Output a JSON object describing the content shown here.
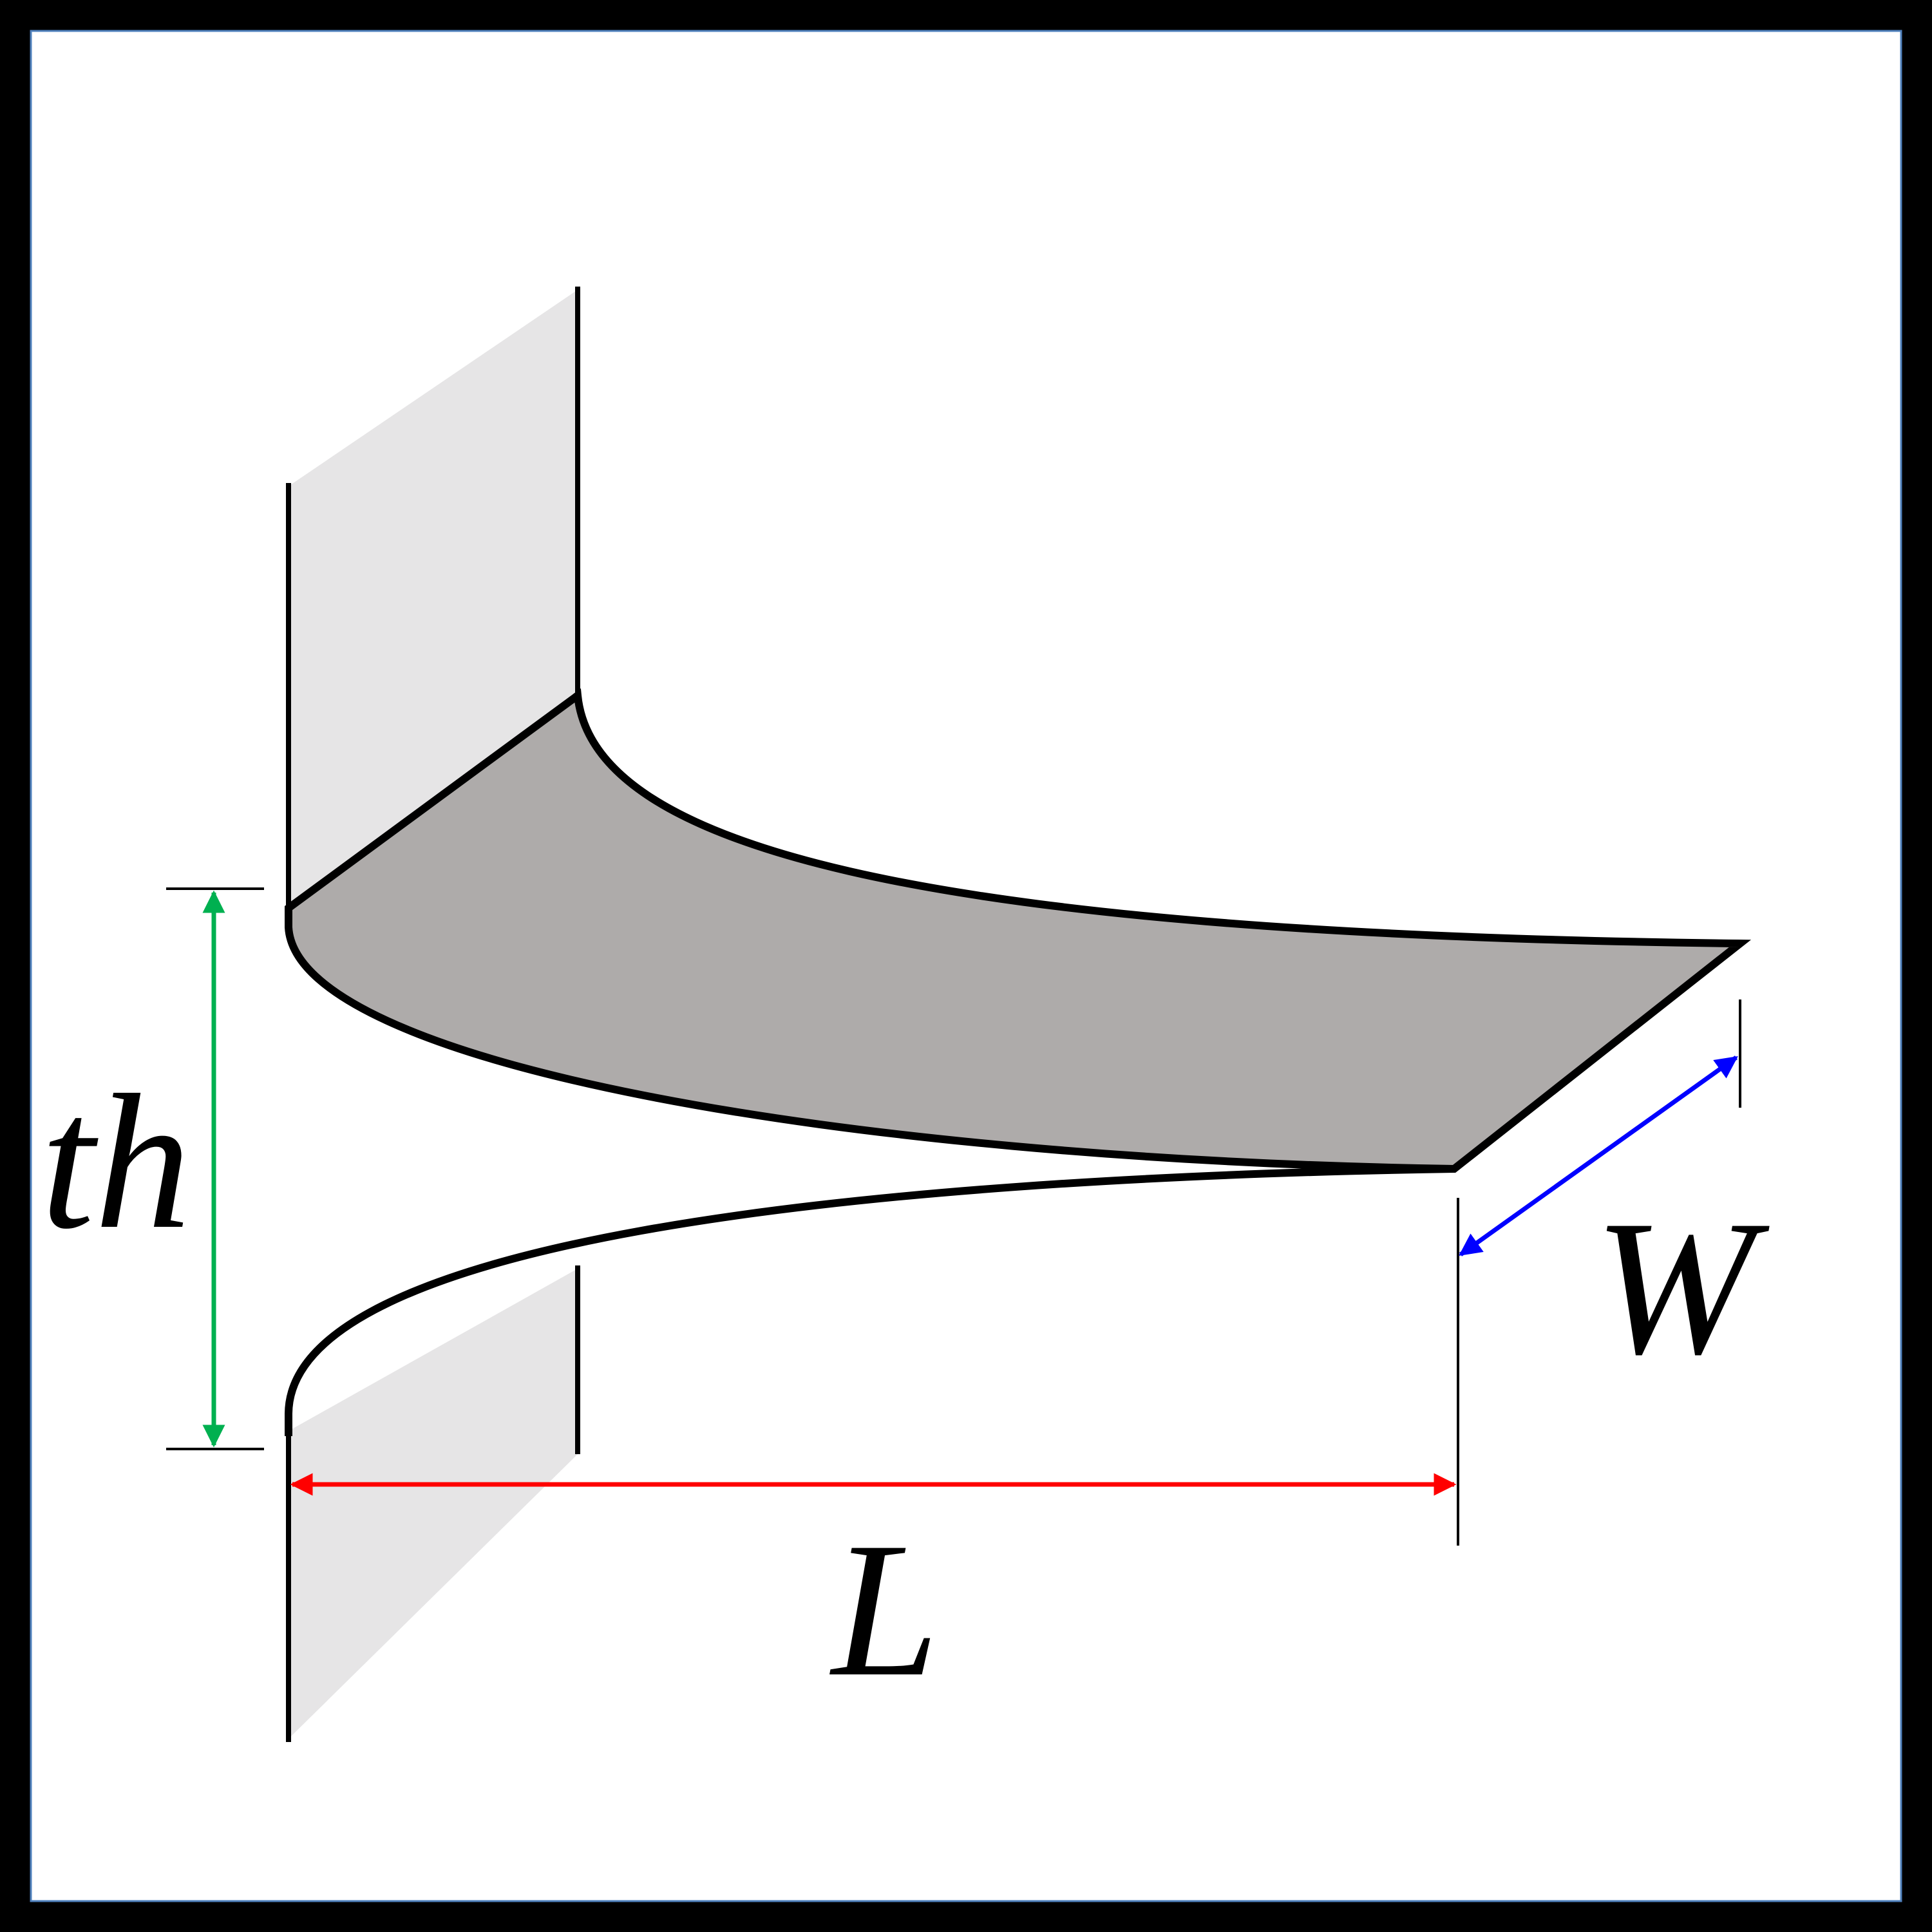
{
  "diagram": {
    "labels": {
      "thickness": "th",
      "length": "L",
      "width": "W"
    },
    "colors": {
      "frame": "#000000",
      "panel_background": "#ffffff",
      "panel_border": "#4f81bd",
      "wall_fill": "#e6e5e6",
      "top_face_fill": "#aeabaa",
      "outline": "#000000",
      "thickness_arrow": "#00b050",
      "length_arrow": "#ff0000",
      "width_arrow": "#0000ff"
    }
  }
}
